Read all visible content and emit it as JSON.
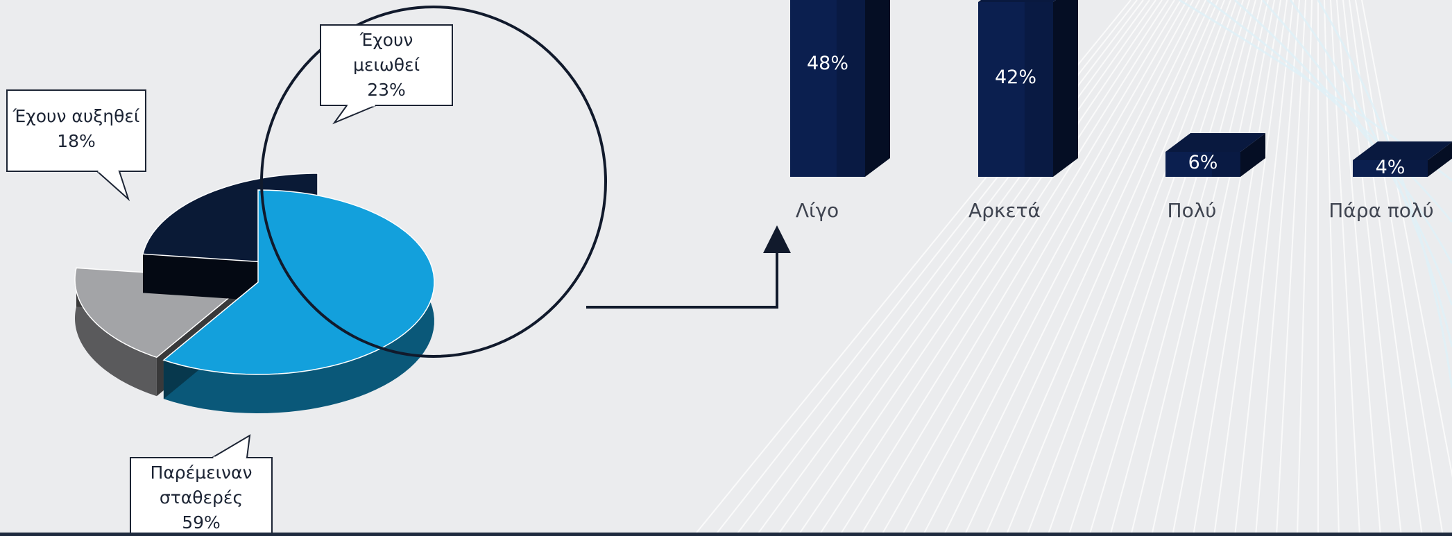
{
  "chart_data": [
    {
      "type": "pie",
      "slices": [
        {
          "label": "Παρέμειναν σταθερές",
          "value": 59,
          "display": "59%",
          "color": "#13a0dc"
        },
        {
          "label": "Έχουν αυξηθεί",
          "value": 18,
          "display": "18%",
          "color": "#a3a4a7"
        },
        {
          "label": "Έχουν μειωθεί",
          "value": 23,
          "display": "23%",
          "color": "#0a1a36"
        }
      ],
      "callouts": [
        {
          "lines": [
            "Έχουν αυξηθεί",
            "18%"
          ]
        },
        {
          "lines": [
            "Έχουν",
            "μειωθεί",
            "23%"
          ]
        },
        {
          "lines": [
            "Παρέμειναν",
            "σταθερές",
            "59%"
          ]
        }
      ],
      "highlighted_slice": "Έχουν μειωθεί"
    },
    {
      "type": "bar",
      "categories": [
        "Λίγο",
        "Αρκετά",
        "Πολύ",
        "Πάρα πολύ"
      ],
      "values": [
        48,
        42,
        6,
        4
      ],
      "value_labels": [
        "48%",
        "42%",
        "6%",
        "4%"
      ],
      "color": "#0b1f4f"
    }
  ],
  "colors": {
    "background": "#ebecee",
    "accent_dark": "#0b1f4f",
    "accent_blue": "#13a0dc",
    "grey": "#a3a4a7",
    "outline": "#111a2c"
  }
}
